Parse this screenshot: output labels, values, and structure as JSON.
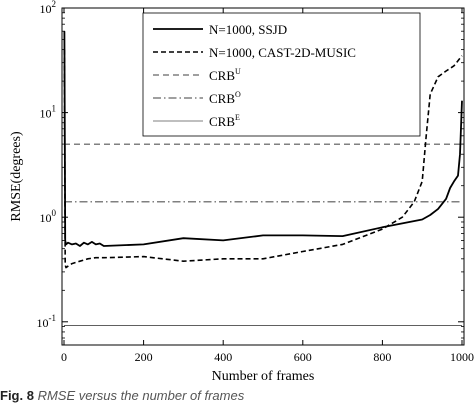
{
  "chart_data": {
    "type": "line",
    "title": "",
    "xlabel": "Number of frames",
    "ylabel": "RMSE(degrees)",
    "xlim": [
      -5,
      1005
    ],
    "ylim": [
      0.06,
      100
    ],
    "yscale": "log",
    "grid": false,
    "legend_position": "top-right",
    "xticks": [
      0,
      200,
      400,
      600,
      800,
      1000
    ],
    "yticks": [
      {
        "value": 0.1,
        "base": "10",
        "exp": "-1"
      },
      {
        "value": 1,
        "base": "10",
        "exp": "0"
      },
      {
        "value": 10,
        "base": "10",
        "exp": "1"
      },
      {
        "value": 100,
        "base": "10",
        "exp": "2"
      }
    ],
    "series": [
      {
        "name": "N=1000, SSJD",
        "sup": "",
        "style": "solid",
        "width": 1.8,
        "x": [
          1,
          3,
          5,
          10,
          20,
          30,
          40,
          50,
          60,
          70,
          80,
          90,
          100,
          200,
          300,
          400,
          500,
          600,
          700,
          800,
          900,
          920,
          940,
          960,
          970,
          980,
          990,
          995,
          1000
        ],
        "y": [
          60,
          0.6,
          0.55,
          0.57,
          0.55,
          0.56,
          0.53,
          0.57,
          0.55,
          0.58,
          0.55,
          0.56,
          0.53,
          0.55,
          0.63,
          0.6,
          0.67,
          0.67,
          0.66,
          0.8,
          0.95,
          1.05,
          1.2,
          1.5,
          1.9,
          2.2,
          2.5,
          4,
          13
        ]
      },
      {
        "name": "N=1000, CAST-2D-MUSIC",
        "sup": "",
        "style": "dashed",
        "width": 1.6,
        "x": [
          1,
          3,
          5,
          10,
          20,
          40,
          60,
          80,
          100,
          200,
          300,
          400,
          500,
          600,
          700,
          800,
          850,
          880,
          900,
          910,
          920,
          940,
          960,
          980,
          1000
        ],
        "y": [
          40,
          0.35,
          0.33,
          0.34,
          0.36,
          0.38,
          0.4,
          0.41,
          0.41,
          0.42,
          0.38,
          0.4,
          0.4,
          0.47,
          0.55,
          0.77,
          1.0,
          1.4,
          2.2,
          6,
          15,
          22,
          25,
          28,
          35
        ]
      },
      {
        "name": "CRB",
        "sup": "U",
        "style": "dashed-thin",
        "width": 0.8,
        "x": [
          0,
          1000
        ],
        "y": [
          5.0,
          5.0
        ]
      },
      {
        "name": "CRB",
        "sup": "O",
        "style": "dashdot",
        "width": 0.8,
        "x": [
          0,
          1000
        ],
        "y": [
          1.4,
          1.4
        ]
      },
      {
        "name": "CRB",
        "sup": "E",
        "style": "solid-thin",
        "width": 0.6,
        "x": [
          0,
          1000
        ],
        "y": [
          0.092,
          0.092
        ]
      }
    ]
  },
  "caption": {
    "label": "Fig. 8",
    "text": "RMSE versus the number of frames"
  }
}
